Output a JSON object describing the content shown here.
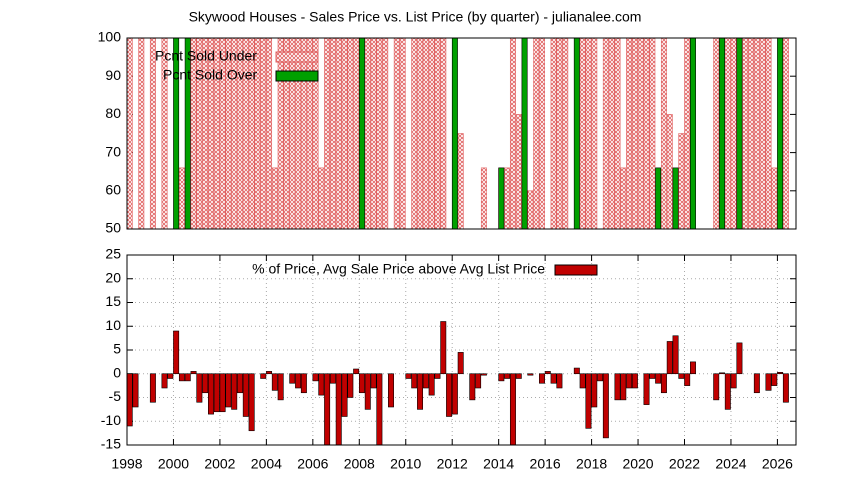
{
  "chart_data": [
    {
      "type": "bar",
      "title": "Skywood Houses - Sales Price vs. List Price (by quarter) - julianalee.com",
      "x": [
        1998,
        1998.25,
        1998.5,
        1998.75,
        1999,
        1999.25,
        1999.5,
        1999.75,
        2000,
        2000.25,
        2000.5,
        2000.75,
        2001,
        2001.25,
        2001.5,
        2001.75,
        2002,
        2002.25,
        2002.5,
        2002.75,
        2003,
        2003.25,
        2003.5,
        2003.75,
        2004,
        2004.25,
        2004.5,
        2004.75,
        2005,
        2005.25,
        2005.5,
        2005.75,
        2006,
        2006.25,
        2006.5,
        2006.75,
        2007,
        2007.25,
        2007.5,
        2007.75,
        2008,
        2008.25,
        2008.5,
        2008.75,
        2009,
        2009.25,
        2009.5,
        2009.75,
        2010,
        2010.25,
        2010.5,
        2010.75,
        2011,
        2011.25,
        2011.5,
        2011.75,
        2012,
        2012.25,
        2012.5,
        2012.75,
        2013,
        2013.25,
        2013.5,
        2013.75,
        2014,
        2014.25,
        2014.5,
        2014.75,
        2015,
        2015.25,
        2015.5,
        2015.75,
        2016,
        2016.25,
        2016.5,
        2016.75,
        2017,
        2017.25,
        2017.5,
        2017.75,
        2018,
        2018.25,
        2018.5,
        2018.75,
        2019,
        2019.25,
        2019.5,
        2019.75,
        2020,
        2020.25,
        2020.5,
        2020.75,
        2021,
        2021.25,
        2021.5,
        2021.75,
        2022,
        2022.25,
        2022.5,
        2022.75,
        2023,
        2023.25,
        2023.5,
        2023.75,
        2024,
        2024.25,
        2024.5,
        2024.75,
        2025,
        2025.25,
        2025.5,
        2025.75,
        2026,
        2026.25,
        2026.5
      ],
      "series": [
        {
          "name": "Pcnt Sold Under",
          "color": "#e06060",
          "pattern": "hatch",
          "values": [
            100,
            null,
            100,
            null,
            100,
            null,
            100,
            null,
            null,
            66,
            null,
            100,
            100,
            100,
            100,
            100,
            100,
            100,
            100,
            100,
            100,
            100,
            100,
            100,
            100,
            66,
            100,
            100,
            100,
            100,
            100,
            100,
            100,
            66,
            100,
            100,
            100,
            100,
            100,
            100,
            null,
            100,
            100,
            100,
            100,
            null,
            100,
            100,
            null,
            100,
            100,
            100,
            100,
            100,
            100,
            null,
            null,
            75,
            null,
            null,
            null,
            66,
            null,
            null,
            66,
            66,
            100,
            80,
            null,
            60,
            100,
            100,
            null,
            100,
            100,
            100,
            null,
            null,
            100,
            100,
            100,
            null,
            100,
            100,
            100,
            66,
            100,
            100,
            100,
            100,
            100,
            null,
            100,
            80,
            null,
            75,
            100,
            null,
            null,
            null,
            null,
            100,
            null,
            100,
            100,
            null,
            100,
            100,
            100,
            100,
            100,
            66,
            null,
            100,
            null
          ]
        },
        {
          "name": "Pcnt Sold Over",
          "color": "#00a000",
          "pattern": "solid",
          "values": [
            null,
            null,
            null,
            null,
            null,
            null,
            null,
            null,
            100,
            null,
            100,
            null,
            null,
            null,
            null,
            null,
            null,
            null,
            null,
            null,
            null,
            null,
            null,
            null,
            null,
            null,
            null,
            null,
            null,
            null,
            null,
            null,
            null,
            null,
            null,
            null,
            null,
            null,
            null,
            null,
            100,
            null,
            null,
            null,
            null,
            null,
            null,
            null,
            null,
            null,
            null,
            null,
            null,
            null,
            null,
            null,
            100,
            null,
            null,
            null,
            null,
            null,
            null,
            null,
            66,
            null,
            null,
            null,
            100,
            null,
            null,
            null,
            null,
            null,
            null,
            null,
            null,
            100,
            null,
            null,
            null,
            null,
            null,
            null,
            null,
            null,
            null,
            null,
            null,
            null,
            null,
            66,
            null,
            null,
            66,
            null,
            null,
            100,
            null,
            null,
            null,
            null,
            100,
            null,
            null,
            100,
            null,
            null,
            null,
            null,
            null,
            null,
            100,
            null,
            null
          ]
        }
      ],
      "xlim": [
        1998,
        2026.8
      ],
      "ylim": [
        50,
        100
      ],
      "yticks": [
        50,
        60,
        70,
        80,
        90,
        100
      ],
      "grid": false
    },
    {
      "type": "bar",
      "x": [
        1998,
        1998.25,
        1998.5,
        1998.75,
        1999,
        1999.25,
        1999.5,
        1999.75,
        2000,
        2000.25,
        2000.5,
        2000.75,
        2001,
        2001.25,
        2001.5,
        2001.75,
        2002,
        2002.25,
        2002.5,
        2002.75,
        2003,
        2003.25,
        2003.5,
        2003.75,
        2004,
        2004.25,
        2004.5,
        2004.75,
        2005,
        2005.25,
        2005.5,
        2005.75,
        2006,
        2006.25,
        2006.5,
        2006.75,
        2007,
        2007.25,
        2007.5,
        2007.75,
        2008,
        2008.25,
        2008.5,
        2008.75,
        2009,
        2009.25,
        2009.5,
        2009.75,
        2010,
        2010.25,
        2010.5,
        2010.75,
        2011,
        2011.25,
        2011.5,
        2011.75,
        2012,
        2012.25,
        2012.5,
        2012.75,
        2013,
        2013.25,
        2013.5,
        2013.75,
        2014,
        2014.25,
        2014.5,
        2014.75,
        2015,
        2015.25,
        2015.5,
        2015.75,
        2016,
        2016.25,
        2016.5,
        2016.75,
        2017,
        2017.25,
        2017.5,
        2017.75,
        2018,
        2018.25,
        2018.5,
        2018.75,
        2019,
        2019.25,
        2019.5,
        2019.75,
        2020,
        2020.25,
        2020.5,
        2020.75,
        2021,
        2021.25,
        2021.5,
        2021.75,
        2022,
        2022.25,
        2022.5,
        2022.75,
        2023,
        2023.25,
        2023.5,
        2023.75,
        2024,
        2024.25,
        2024.5,
        2024.75,
        2025,
        2025.25,
        2025.5,
        2025.75,
        2026,
        2026.25,
        2026.5
      ],
      "series": [
        {
          "name": "% of Price, Avg Sale Price above Avg List Price",
          "color": "#c00000",
          "pattern": "solid",
          "values": [
            -11,
            -7,
            null,
            null,
            -6,
            null,
            -3,
            -1,
            9,
            -1.5,
            -1.5,
            0.5,
            -6,
            -4,
            -8.5,
            -8,
            -8,
            -7,
            -7.5,
            -4,
            -9,
            -12,
            null,
            -1,
            0.5,
            -3.5,
            -5.5,
            null,
            -2,
            -3,
            -4,
            null,
            -1.5,
            -4.5,
            -15,
            -2,
            -15,
            -9,
            -5,
            1,
            -4,
            -7.5,
            -3,
            -15,
            null,
            -7,
            null,
            null,
            -1,
            -3,
            -7.5,
            -3,
            -4.5,
            -1,
            11,
            -9,
            -8.5,
            4.5,
            null,
            -5.5,
            -3,
            -0.3,
            null,
            null,
            -1.5,
            -1,
            -15,
            -1,
            null,
            -0.3,
            null,
            -2,
            0.5,
            -2,
            -3,
            null,
            null,
            1.2,
            -3,
            -11.5,
            -7,
            -1.5,
            -13.5,
            null,
            -5.5,
            -5.5,
            -3,
            -3,
            null,
            -6.5,
            -1,
            -2,
            -4,
            6.8,
            8,
            -1,
            -2.5,
            2.5,
            null,
            null,
            null,
            -5.5,
            0.2,
            -7.5,
            -3,
            6.5,
            null,
            null,
            -4,
            null,
            -3.5,
            -2.5,
            0.3,
            -6,
            null
          ]
        }
      ],
      "xlim": [
        1998,
        2026.8
      ],
      "xticks": [
        1998,
        2000,
        2002,
        2004,
        2006,
        2008,
        2010,
        2012,
        2014,
        2016,
        2018,
        2020,
        2022,
        2024,
        2026
      ],
      "ylim": [
        -15,
        25
      ],
      "yticks": [
        -15,
        -10,
        -5,
        0,
        5,
        10,
        15,
        20,
        25
      ],
      "grid": true
    }
  ]
}
